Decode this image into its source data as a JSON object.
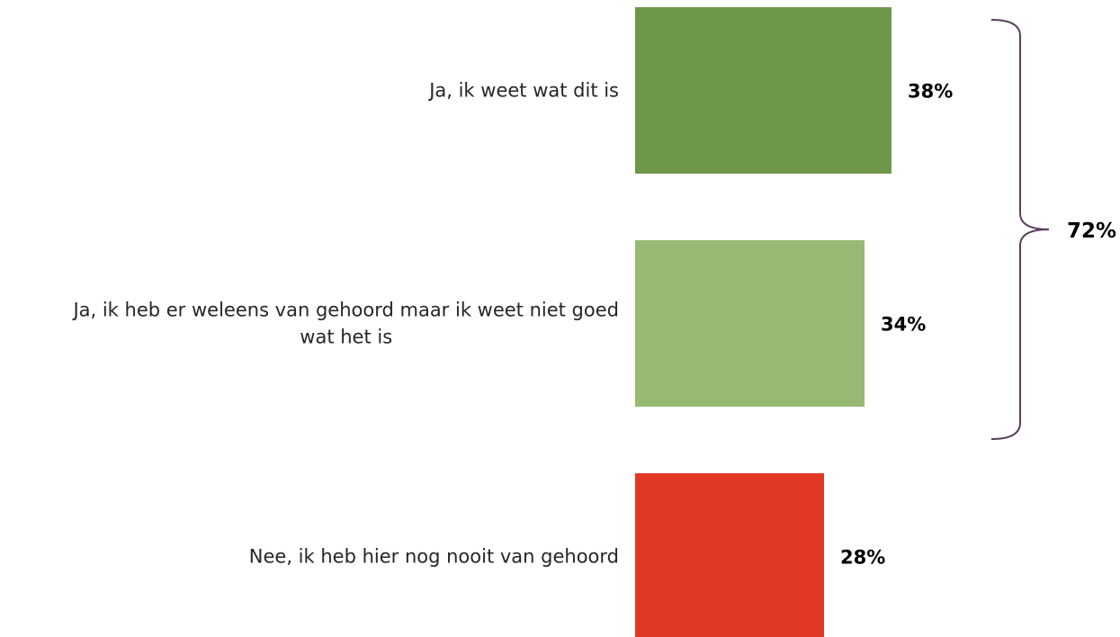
{
  "chart_data": {
    "type": "bar",
    "orientation": "horizontal",
    "categories": [
      "Ja, ik weet wat dit is",
      "Ja, ik heb er weleens van gehoord maar ik weet niet goed wat het is",
      "Nee, ik heb hier nog nooit van gehoord"
    ],
    "values": [
      38,
      34,
      28
    ],
    "value_labels": [
      "38%",
      "34%",
      "28%"
    ],
    "colors": [
      "#6F974A",
      "#97B973",
      "#E13825"
    ],
    "bracket": {
      "categories": [
        0,
        1
      ],
      "label": "72%",
      "color": "#5B3D5E"
    },
    "grid": false,
    "legend": "none"
  }
}
